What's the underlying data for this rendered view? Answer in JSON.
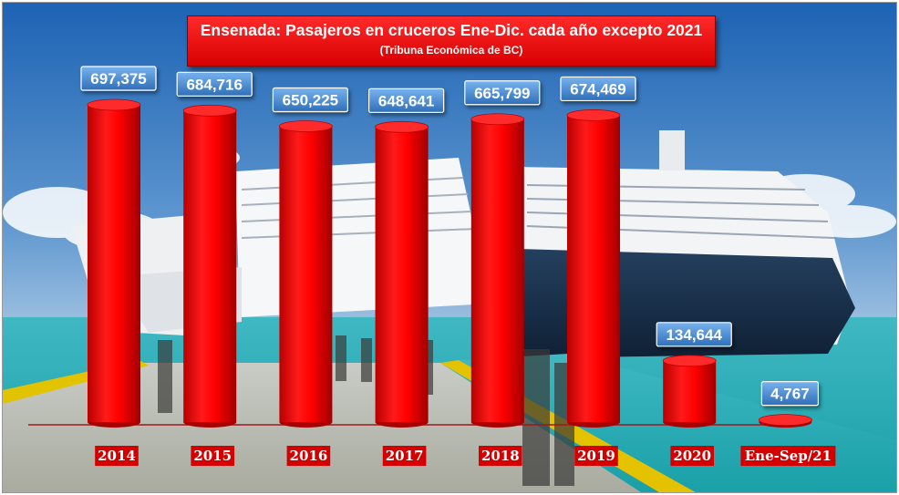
{
  "title": "Ensenada: Pasajeros en cruceros  Ene-Dic. cada año excepto 2021",
  "subtitle": "(Tribuna Económica de BC)",
  "colors": {
    "bar": "#ff0000",
    "bar_dark": "#b80000",
    "value_label_bg": "#4a8fd6",
    "category_label_bg": "#d40000"
  },
  "background_image": "cruise-ships-at-pier-photo",
  "chart_data": {
    "type": "bar",
    "categories": [
      "2014",
      "2015",
      "2016",
      "2017",
      "2018",
      "2019",
      "2020",
      "Ene-Sep/21"
    ],
    "values": [
      697375,
      684716,
      650225,
      648641,
      665799,
      674469,
      134644,
      4767
    ],
    "value_labels": [
      "697,375",
      "684,716",
      "650,225",
      "648,641",
      "665,799",
      "674,469",
      "134,644",
      "4,767"
    ],
    "title": "Ensenada: Pasajeros en cruceros  Ene-Dic. cada año excepto 2021",
    "subtitle": "(Tribuna Económica de BC)",
    "xlabel": "",
    "ylabel": "",
    "ylim": [
      0,
      697375
    ],
    "grid": false,
    "legend": "none",
    "bar_style": "3d-cylinder"
  }
}
